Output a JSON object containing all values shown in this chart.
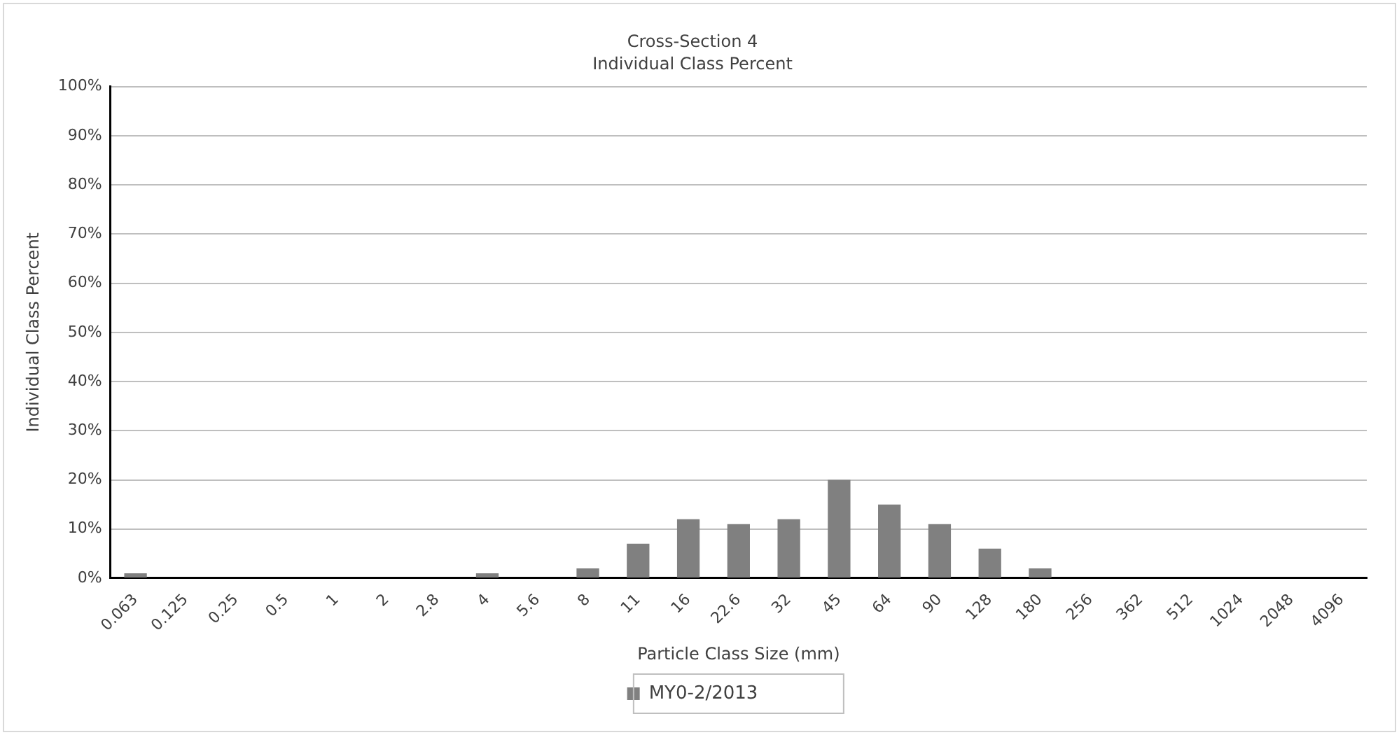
{
  "chart_data": {
    "type": "bar",
    "title": "Cross-Section 4",
    "subtitle": "Individual Class Percent",
    "xlabel": "Particle Class Size (mm)",
    "ylabel": "Individual Class Percent",
    "categories": [
      "0.063",
      "0.125",
      "0.25",
      "0.5",
      "1",
      "2",
      "2.8",
      "4",
      "5.6",
      "8",
      "11",
      "16",
      "22.6",
      "32",
      "45",
      "64",
      "90",
      "128",
      "180",
      "256",
      "362",
      "512",
      "1024",
      "2048",
      "4096"
    ],
    "series": [
      {
        "name": "MY0-2/2013",
        "color": "#808080",
        "values": [
          1,
          0,
          0,
          0,
          0,
          0,
          0,
          1,
          0,
          2,
          7,
          12,
          11,
          12,
          20,
          15,
          11,
          6,
          2,
          0,
          0,
          0,
          0,
          0,
          0
        ]
      }
    ],
    "ylim": [
      0,
      100
    ],
    "yticks": [
      {
        "value": 0,
        "label": "0%"
      },
      {
        "value": 10,
        "label": "10%"
      },
      {
        "value": 20,
        "label": "20%"
      },
      {
        "value": 30,
        "label": "30%"
      },
      {
        "value": 40,
        "label": "40%"
      },
      {
        "value": 50,
        "label": "50%"
      },
      {
        "value": 60,
        "label": "60%"
      },
      {
        "value": 70,
        "label": "70%"
      },
      {
        "value": 80,
        "label": "80%"
      },
      {
        "value": 90,
        "label": "90%"
      },
      {
        "value": 100,
        "label": "100%"
      }
    ],
    "grid": "y",
    "legend": "bottom"
  }
}
